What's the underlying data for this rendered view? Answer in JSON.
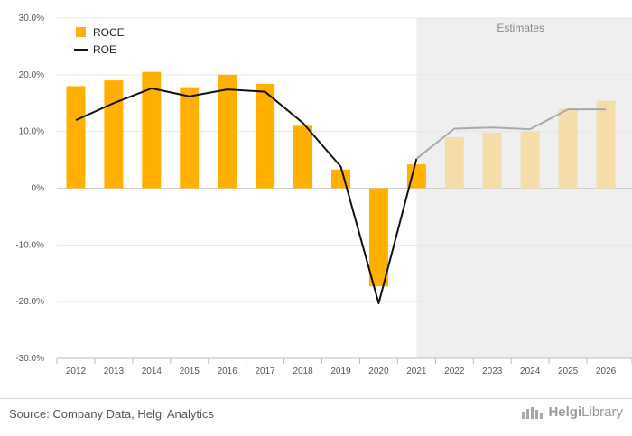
{
  "chart_data": {
    "type": "bar+line",
    "categories": [
      "2012",
      "2013",
      "2014",
      "2015",
      "2016",
      "2017",
      "2018",
      "2019",
      "2020",
      "2021",
      "2022",
      "2023",
      "2024",
      "2025",
      "2026"
    ],
    "series": [
      {
        "name": "ROCE",
        "type": "bar",
        "color": "#FFB000",
        "estimate_color": "#F6DDA8",
        "values": [
          18.0,
          19.0,
          20.5,
          17.8,
          20.0,
          18.4,
          11.0,
          3.3,
          -17.3,
          4.2,
          9.0,
          9.8,
          10.0,
          14.0,
          15.4
        ]
      },
      {
        "name": "ROE",
        "type": "line",
        "color": "#111111",
        "estimate_color": "#A8A8A8",
        "values": [
          12.0,
          15.0,
          17.6,
          16.2,
          17.4,
          17.0,
          11.5,
          3.8,
          -20.3,
          5.2,
          10.5,
          10.7,
          10.4,
          13.9,
          13.9
        ]
      }
    ],
    "estimate_start_index": 10,
    "estimates_label": "Estimates",
    "y_ticks": [
      "30.0%",
      "20.0%",
      "10.0%",
      "0%",
      "-10.0%",
      "-20.0%",
      "-30.0%"
    ],
    "y_tick_values": [
      30,
      20,
      10,
      0,
      -10,
      -20,
      -30
    ],
    "ylim": [
      -30,
      30
    ],
    "legend": [
      "ROCE",
      "ROE"
    ],
    "legend_position": "top-left"
  },
  "footer": {
    "source": "Source: Company Data, Helgi Analytics",
    "brand_bold": "Helgi",
    "brand_light": "Library"
  }
}
